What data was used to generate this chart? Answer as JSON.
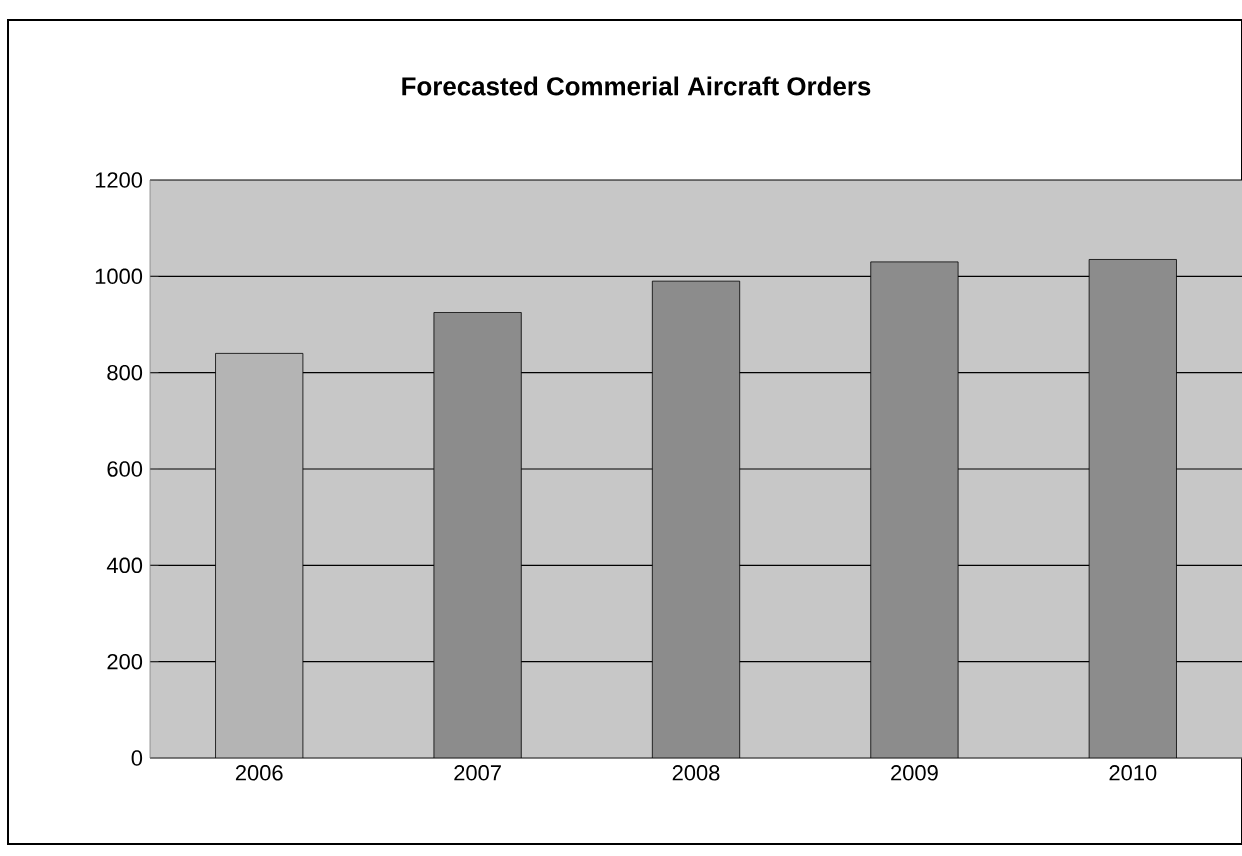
{
  "chart_data": {
    "type": "bar",
    "title": "Forecasted Commerial Aircraft Orders",
    "categories": [
      "2006",
      "2007",
      "2008",
      "2009",
      "2010"
    ],
    "values": [
      840,
      925,
      990,
      1030,
      1035
    ],
    "colors": [
      "#b4b4b4",
      "#8c8c8c",
      "#8c8c8c",
      "#8c8c8c",
      "#8c8c8c"
    ],
    "ylim": [
      0,
      1200
    ],
    "yticks": [
      0,
      200,
      400,
      600,
      800,
      1000,
      1200
    ],
    "grid": "y"
  }
}
